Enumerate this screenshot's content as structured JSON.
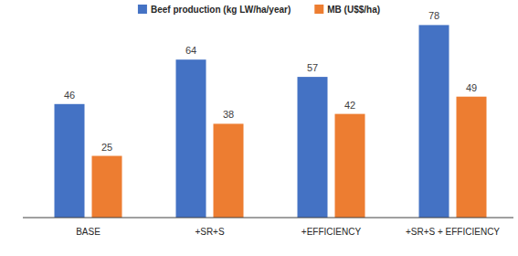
{
  "chart_data": {
    "type": "bar",
    "categories": [
      "BASE",
      "+SR+S",
      "+EFFICIENCY",
      "+SR+S + EFFICIENCY"
    ],
    "series": [
      {
        "name": "Beef production (kg LW/ha/year)",
        "color": "#4472c4",
        "values": [
          46,
          64,
          57,
          78
        ]
      },
      {
        "name": "MB (U$$/ha)",
        "color": "#ed7d31",
        "values": [
          25,
          38,
          42,
          49
        ]
      }
    ],
    "ylim": [
      0,
      80
    ],
    "grid": false,
    "legend": "top",
    "data_labels": true,
    "tick_labels": "x"
  }
}
